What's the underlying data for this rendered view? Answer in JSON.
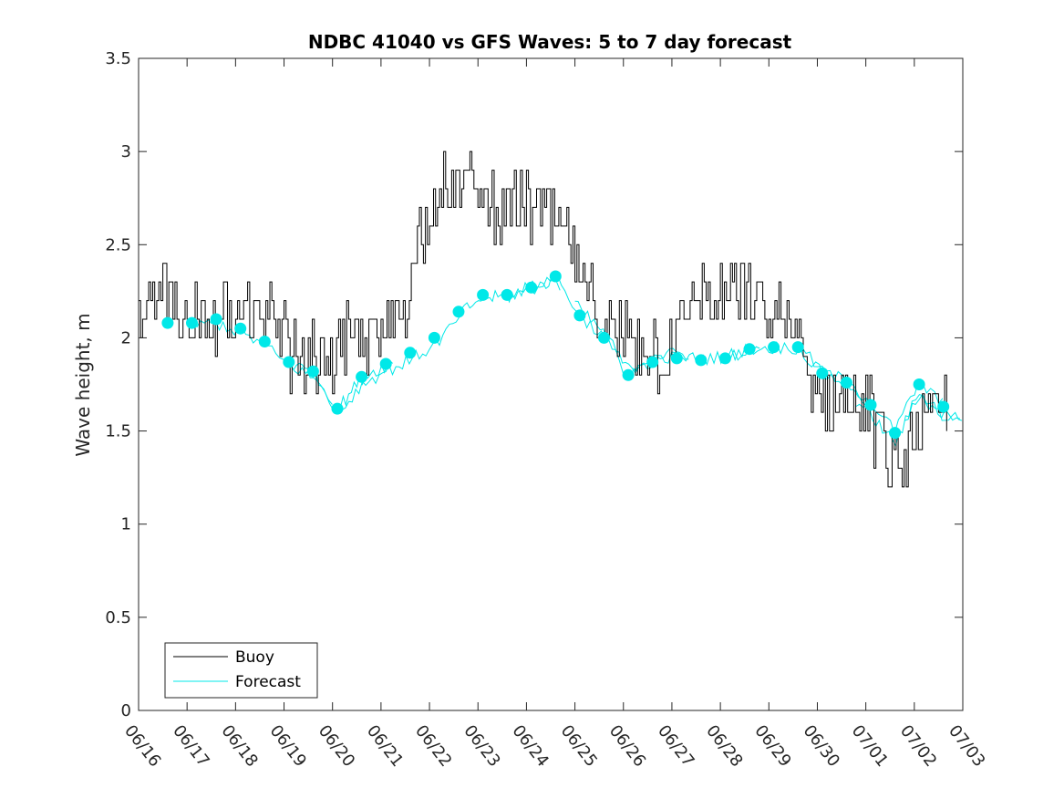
{
  "chart_data": {
    "type": "line",
    "title": "NDBC 41040 vs GFS Waves: 5 to 7 day forecast",
    "xlabel": "",
    "ylabel": "Wave height, m",
    "xlim": [
      0,
      17
    ],
    "ylim": [
      0,
      3.5
    ],
    "x_tick_labels": [
      "06/16",
      "06/17",
      "06/18",
      "06/19",
      "06/20",
      "06/21",
      "06/22",
      "06/23",
      "06/24",
      "06/25",
      "06/26",
      "06/27",
      "06/28",
      "06/29",
      "06/30",
      "07/01",
      "07/02",
      "07/03"
    ],
    "y_tick_labels": [
      "0",
      "0.5",
      "1",
      "1.5",
      "2",
      "2.5",
      "3",
      "3.5"
    ],
    "grid": false,
    "legend_position": "bottom-left",
    "legend": [
      "Buoy",
      "Forecast"
    ],
    "colors": {
      "buoy": "#000000",
      "forecast": "#00e8e8"
    },
    "series": [
      {
        "name": "Buoy",
        "x": [
          0,
          0.25,
          0.5,
          0.75,
          1,
          1.25,
          1.5,
          1.75,
          2,
          2.25,
          2.5,
          2.75,
          3,
          3.25,
          3.5,
          3.75,
          4,
          4.25,
          4.5,
          4.75,
          5,
          5.25,
          5.5,
          5.75,
          6,
          6.25,
          6.5,
          6.75,
          7,
          7.25,
          7.5,
          7.75,
          8,
          8.25,
          8.5,
          8.75,
          9,
          9.25,
          9.5,
          9.75,
          10,
          10.25,
          10.5,
          10.75,
          11,
          11.25,
          11.5,
          11.75,
          12,
          12.25,
          12.5,
          12.75,
          13,
          13.25,
          13.5,
          13.75,
          14,
          14.25,
          14.5,
          14.75,
          15,
          15.25,
          15.5,
          15.75,
          16,
          16.25,
          16.5,
          16.75,
          17
        ],
        "y": [
          2.0,
          2.2,
          2.3,
          2.1,
          2.1,
          2.1,
          2.1,
          2.15,
          2.1,
          2.2,
          2.1,
          2.05,
          2.0,
          1.9,
          1.9,
          1.9,
          1.9,
          1.95,
          2.0,
          2.0,
          2.0,
          2.1,
          2.2,
          2.5,
          2.7,
          2.8,
          2.8,
          2.8,
          2.8,
          2.7,
          2.7,
          2.75,
          2.7,
          2.7,
          2.65,
          2.6,
          2.4,
          2.25,
          2.1,
          2.0,
          2.0,
          2.0,
          1.95,
          1.9,
          1.95,
          2.1,
          2.25,
          2.2,
          2.2,
          2.25,
          2.2,
          2.2,
          2.1,
          2.15,
          2.0,
          1.85,
          1.7,
          1.65,
          1.7,
          1.65,
          1.6,
          1.5,
          1.3,
          1.3,
          1.5,
          1.55,
          1.6,
          1.6,
          1.6
        ]
      },
      {
        "name": "Forecast",
        "x": [
          0.6,
          1.1,
          1.6,
          2.1,
          2.6,
          3.1,
          3.6,
          4.1,
          4.6,
          5.1,
          5.6,
          6.1,
          6.6,
          7.1,
          7.6,
          8.1,
          8.6,
          9.1,
          9.6,
          10.1,
          10.6,
          11.1,
          11.6,
          12.1,
          12.6,
          13.1,
          13.6,
          14.1,
          14.6,
          15.1,
          15.6,
          16.1,
          16.6
        ],
        "y": [
          2.08,
          2.08,
          2.1,
          2.05,
          1.98,
          1.87,
          1.82,
          1.62,
          1.79,
          1.86,
          1.92,
          2.0,
          2.14,
          2.23,
          2.23,
          2.27,
          2.33,
          2.12,
          2.0,
          1.8,
          1.87,
          1.89,
          1.88,
          1.89,
          1.94,
          1.95,
          1.95,
          1.81,
          1.76,
          1.64,
          1.49,
          1.75,
          1.63
        ]
      }
    ]
  }
}
